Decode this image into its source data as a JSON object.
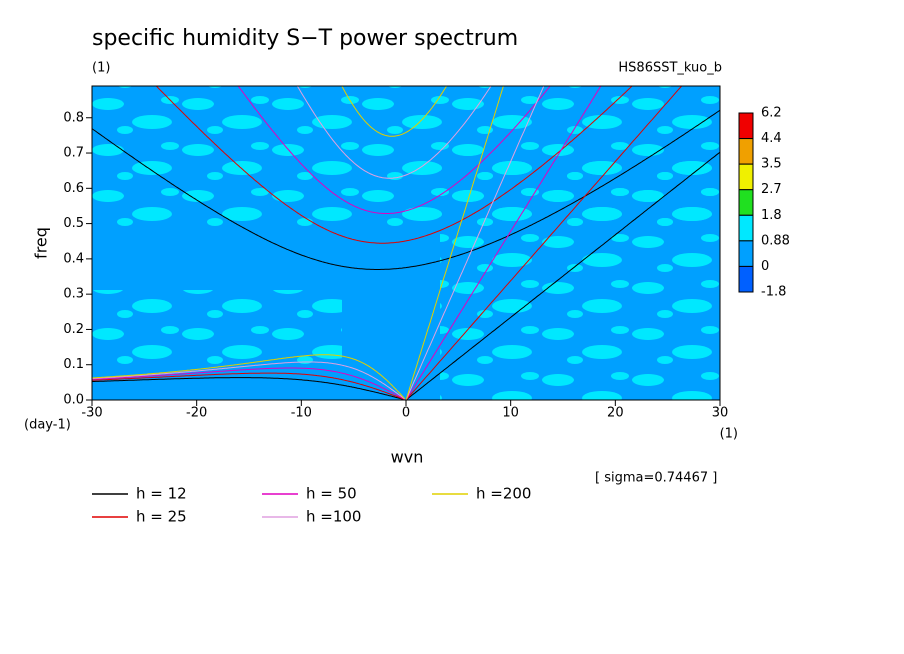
{
  "chart_data": {
    "type": "spectrum",
    "title": "specific humidity S−T power spectrum",
    "subtitle": "(1)",
    "run_label": "HS86SST_kuo_b",
    "x_label": "wvn",
    "y_label": "freq",
    "y_unit": "(day-1)",
    "x_unit": "(1)",
    "note": "[ sigma=0.74467 ]",
    "xlim": [
      -30,
      30
    ],
    "ylim": [
      0,
      0.89
    ],
    "xticks": [
      -30,
      -20,
      -10,
      0,
      10,
      20,
      30
    ],
    "yticks": [
      {
        "value": 0,
        "label": "0.0"
      },
      0.1,
      0.2,
      0.3,
      0.4,
      0.5,
      0.6,
      0.7,
      0.8
    ],
    "colorbar": {
      "levels": [
        6.2,
        4.4,
        3.5,
        2.7,
        1.8,
        0.88,
        0,
        -1.8
      ],
      "colors": [
        "#f00000",
        "#f0a000",
        "#f0f000",
        "#20e020",
        "#00e8ff",
        "#00a0ff",
        "#0060ff"
      ]
    },
    "series": [
      {
        "name": "h = 12",
        "h": 12,
        "color": "#000000"
      },
      {
        "name": "h = 25",
        "h": 25,
        "color": "#e00000"
      },
      {
        "name": "h = 50",
        "h": 50,
        "color": "#e000c0"
      },
      {
        "name": "h =100",
        "h": 100,
        "color": "#e0a0e0"
      },
      {
        "name": "h =200",
        "h": 200,
        "color": "#e0d000"
      }
    ]
  }
}
